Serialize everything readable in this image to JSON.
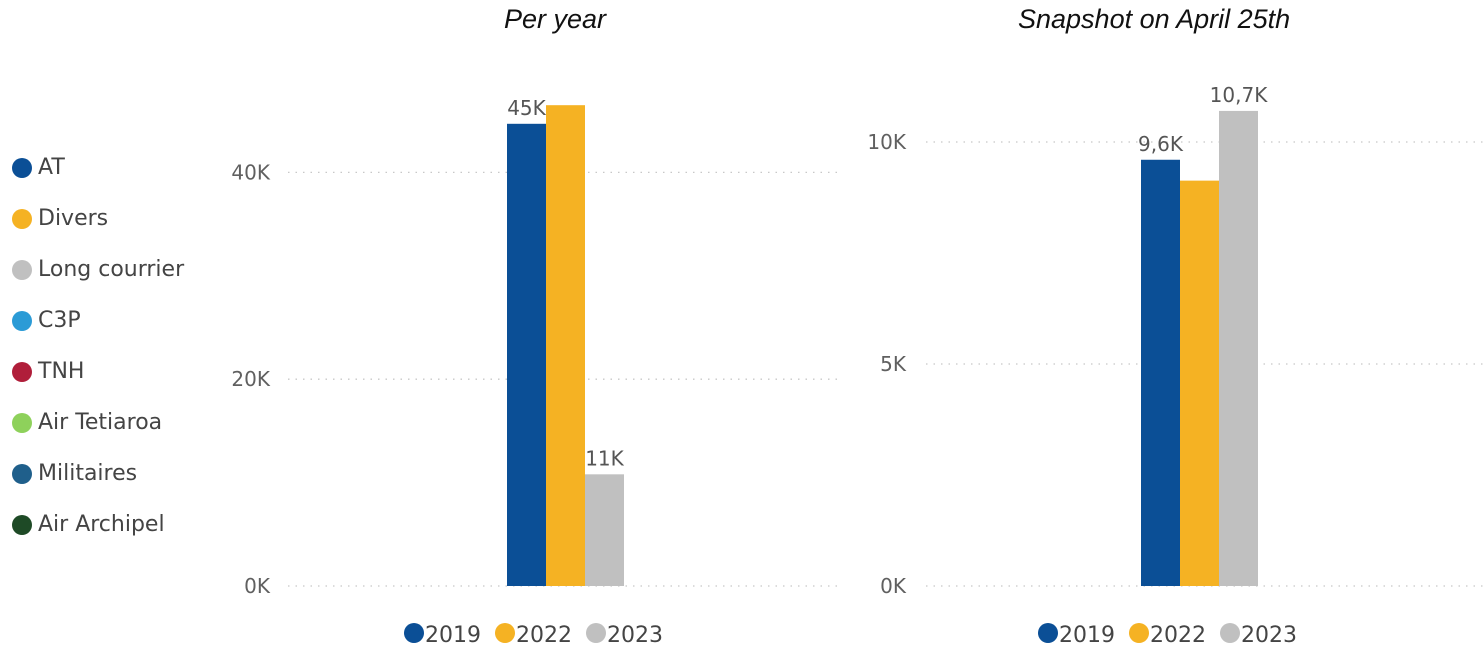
{
  "side_legend": {
    "items": [
      {
        "label": "AT",
        "color": "#0b4f96"
      },
      {
        "label": "Divers",
        "color": "#f5b223"
      },
      {
        "label": "Long courrier",
        "color": "#c0c0c0"
      },
      {
        "label": "C3P",
        "color": "#2b9bd6"
      },
      {
        "label": "TNH",
        "color": "#b01e3a"
      },
      {
        "label": "Air Tetiaroa",
        "color": "#8ed15b"
      },
      {
        "label": "Militaires",
        "color": "#1f5f8b"
      },
      {
        "label": "Air Archipel",
        "color": "#1e4a26"
      }
    ]
  },
  "chart_data": [
    {
      "type": "bar",
      "title": "Per year",
      "xlabel": "",
      "ylabel": "",
      "ylim": [
        0,
        50000
      ],
      "yticks": [
        {
          "value": 0,
          "label": "0K"
        },
        {
          "value": 20000,
          "label": "20K"
        },
        {
          "value": 40000,
          "label": "40K"
        }
      ],
      "grid": true,
      "legend_position": "bottom",
      "series": [
        {
          "name": "2019",
          "color": "#0b4f96",
          "value": 44700,
          "label": "45K"
        },
        {
          "name": "2022",
          "color": "#f5b223",
          "value": 46500,
          "label": ""
        },
        {
          "name": "2023",
          "color": "#c0c0c0",
          "value": 10800,
          "label": "11K"
        }
      ]
    },
    {
      "type": "bar",
      "title": "Snapshot on April 25th",
      "xlabel": "",
      "ylabel": "",
      "ylim": [
        0,
        12500
      ],
      "yticks": [
        {
          "value": 0,
          "label": "0K"
        },
        {
          "value": 5000,
          "label": "5K"
        },
        {
          "value": 10000,
          "label": "10K"
        }
      ],
      "grid": true,
      "legend_position": "bottom",
      "series": [
        {
          "name": "2019",
          "color": "#0b4f96",
          "value": 9600,
          "label": "9,6K"
        },
        {
          "name": "2022",
          "color": "#f5b223",
          "value": 9130,
          "label": ""
        },
        {
          "name": "2023",
          "color": "#c0c0c0",
          "value": 10700,
          "label": "10,7K"
        }
      ]
    }
  ]
}
